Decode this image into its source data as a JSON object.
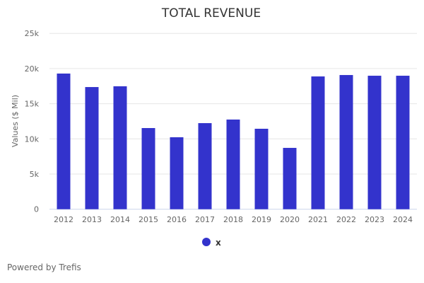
{
  "chart_data": {
    "type": "bar",
    "title": "TOTAL REVENUE",
    "xlabel": "",
    "ylabel": "Values ($ Mil)",
    "ylim": [
      0,
      25000
    ],
    "yticks": [
      0,
      5000,
      10000,
      15000,
      20000,
      25000
    ],
    "ytick_labels": [
      "0",
      "5k",
      "10k",
      "15k",
      "20k",
      "25k"
    ],
    "grid": true,
    "categories": [
      "2012",
      "2013",
      "2014",
      "2015",
      "2016",
      "2017",
      "2018",
      "2019",
      "2020",
      "2021",
      "2022",
      "2023",
      "2024"
    ],
    "series": [
      {
        "name": "x",
        "color": "#3333cc",
        "values": [
          19290,
          17370,
          17480,
          11540,
          10230,
          12240,
          12750,
          11440,
          8720,
          18880,
          19080,
          18980,
          18980
        ]
      }
    ],
    "legend": {
      "position": "bottom-center",
      "entries": [
        "x"
      ]
    }
  },
  "footer": {
    "credit": "Powered by Trefis"
  }
}
